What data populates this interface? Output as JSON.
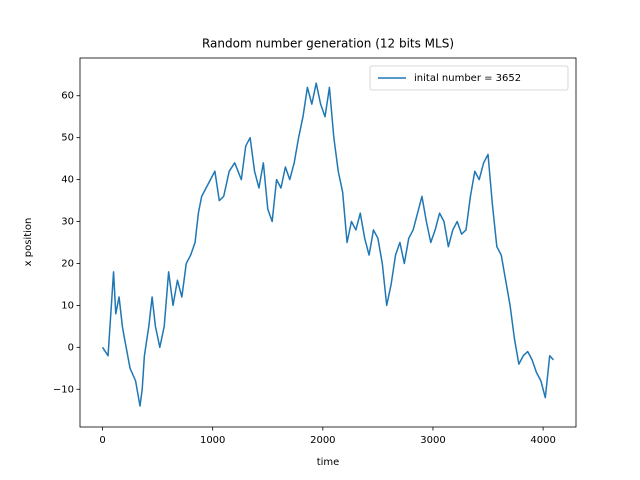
{
  "chart_data": {
    "type": "line",
    "title": "Random number generation (12 bits MLS)",
    "x_label": "time",
    "y_label": "x position",
    "x": [
      0,
      50,
      80,
      100,
      120,
      150,
      180,
      200,
      250,
      300,
      340,
      360,
      380,
      420,
      450,
      480,
      520,
      560,
      600,
      640,
      680,
      720,
      760,
      800,
      840,
      870,
      900,
      940,
      980,
      1020,
      1060,
      1100,
      1150,
      1200,
      1260,
      1300,
      1340,
      1380,
      1420,
      1460,
      1500,
      1540,
      1580,
      1620,
      1660,
      1700,
      1740,
      1780,
      1820,
      1860,
      1900,
      1940,
      1980,
      2020,
      2060,
      2100,
      2140,
      2180,
      2220,
      2260,
      2300,
      2340,
      2380,
      2420,
      2460,
      2500,
      2540,
      2580,
      2620,
      2660,
      2700,
      2740,
      2780,
      2820,
      2860,
      2900,
      2940,
      2980,
      3020,
      3060,
      3100,
      3140,
      3180,
      3220,
      3260,
      3300,
      3340,
      3380,
      3420,
      3460,
      3500,
      3540,
      3580,
      3620,
      3660,
      3700,
      3740,
      3780,
      3820,
      3860,
      3900,
      3940,
      3980,
      4020,
      4060,
      4094
    ],
    "series": [
      {
        "name": "inital number = 3652",
        "color": "#1f77b4",
        "values": [
          0,
          -2,
          10,
          18,
          8,
          12,
          5,
          2,
          -5,
          -8,
          -14,
          -10,
          -2,
          5,
          12,
          5,
          0,
          5,
          18,
          10,
          16,
          12,
          20,
          22,
          25,
          32,
          36,
          38,
          40,
          42,
          35,
          36,
          42,
          44,
          40,
          48,
          50,
          42,
          38,
          44,
          33,
          30,
          40,
          38,
          43,
          40,
          44,
          50,
          55,
          62,
          58,
          63,
          58,
          55,
          62,
          50,
          42,
          37,
          25,
          30,
          28,
          32,
          26,
          22,
          28,
          26,
          20,
          10,
          15,
          22,
          25,
          20,
          26,
          28,
          32,
          36,
          30,
          25,
          28,
          32,
          30,
          24,
          28,
          30,
          27,
          28,
          36,
          42,
          40,
          44,
          46,
          34,
          24,
          22,
          16,
          10,
          2,
          -4,
          -2,
          -1,
          -3,
          -6,
          -8,
          -12,
          -2,
          -3
        ]
      }
    ],
    "xlim": [
      -204.7,
      4298.7
    ],
    "ylim": [
      -19,
      69
    ],
    "xticks": [
      0,
      1000,
      2000,
      3000,
      4000
    ],
    "yticks": [
      {
        "value": -10,
        "label": "−10"
      },
      0,
      10,
      20,
      30,
      40,
      50,
      60
    ],
    "legend": "upper right"
  }
}
